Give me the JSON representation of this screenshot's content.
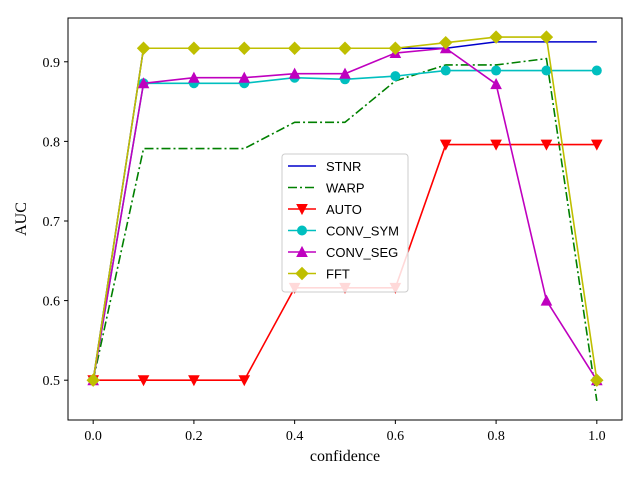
{
  "chart_data": {
    "type": "line",
    "xlabel": "confidence",
    "ylabel": "AUC",
    "xlim": [
      -0.05,
      1.05
    ],
    "ylim": [
      0.45,
      0.955
    ],
    "xticks": [
      0.0,
      0.2,
      0.4,
      0.6,
      0.8,
      1.0
    ],
    "xtick_labels": [
      "0.0",
      "0.2",
      "0.4",
      "0.6",
      "0.8",
      "1.0"
    ],
    "yticks": [
      0.5,
      0.6,
      0.7,
      0.8,
      0.9
    ],
    "ytick_labels": [
      "0.5",
      "0.6",
      "0.7",
      "0.8",
      "0.9"
    ],
    "grid": false,
    "legend_position": "center",
    "x": [
      0.0,
      0.1,
      0.2,
      0.3,
      0.4,
      0.5,
      0.6,
      0.7,
      0.8,
      0.9,
      1.0
    ],
    "series": [
      {
        "name": "STNR",
        "color": "#0000cc",
        "linestyle": "solid",
        "marker": "none",
        "values": [
          0.5,
          0.917,
          0.917,
          0.917,
          0.917,
          0.917,
          0.917,
          0.917,
          0.925,
          0.925,
          0.925
        ]
      },
      {
        "name": "WARP",
        "color": "#008000",
        "linestyle": "dashdot",
        "marker": "none",
        "values": [
          0.5,
          0.791,
          0.791,
          0.791,
          0.824,
          0.824,
          0.876,
          0.896,
          0.896,
          0.904,
          0.474
        ]
      },
      {
        "name": "AUTO",
        "color": "#ff0000",
        "linestyle": "solid",
        "marker": "triangle-down",
        "values": [
          0.5,
          0.5,
          0.5,
          0.5,
          0.616,
          0.616,
          0.616,
          0.796,
          0.796,
          0.796,
          0.796
        ]
      },
      {
        "name": "CONV_SYM",
        "color": "#00bfbf",
        "linestyle": "solid",
        "marker": "circle",
        "values": [
          0.5,
          0.873,
          0.873,
          0.873,
          0.88,
          0.878,
          0.882,
          0.889,
          0.889,
          0.889,
          0.889
        ]
      },
      {
        "name": "CONV_SEG",
        "color": "#bf00bf",
        "linestyle": "solid",
        "marker": "triangle-up",
        "values": [
          0.5,
          0.873,
          0.88,
          0.88,
          0.885,
          0.885,
          0.911,
          0.917,
          0.872,
          0.6,
          0.5
        ]
      },
      {
        "name": "FFT",
        "color": "#bfbf00",
        "linestyle": "solid",
        "marker": "diamond",
        "values": [
          0.5,
          0.917,
          0.917,
          0.917,
          0.917,
          0.917,
          0.917,
          0.924,
          0.931,
          0.931,
          0.5
        ]
      }
    ]
  }
}
